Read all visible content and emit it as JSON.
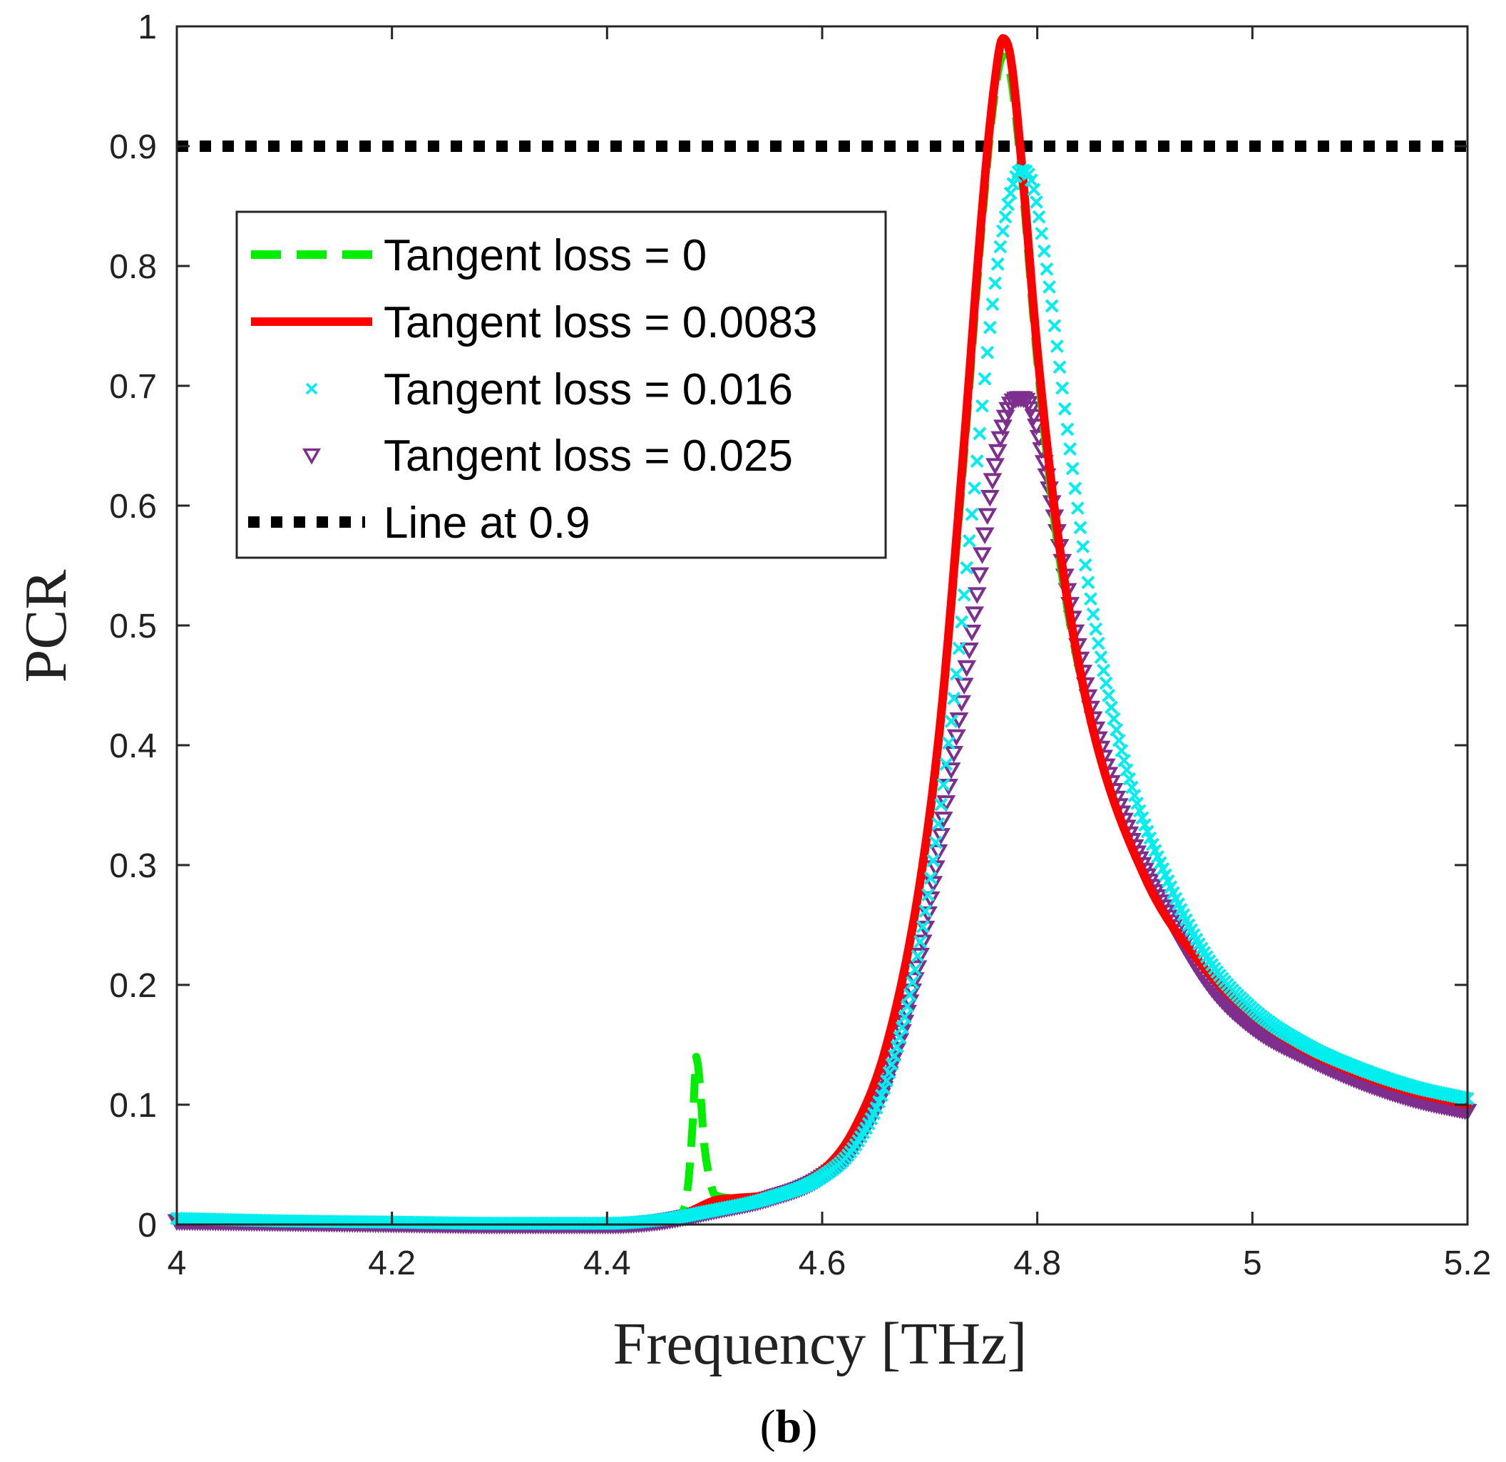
{
  "chart_data": {
    "type": "line",
    "title": "",
    "xlabel": "Frequency [THz]",
    "ylabel": "PCR",
    "panel_label": {
      "open": "(",
      "letter": "b",
      "close": ")"
    },
    "xlim": [
      4,
      5.2
    ],
    "ylim": [
      0,
      1
    ],
    "xticks": [
      4,
      4.2,
      4.4,
      4.6,
      4.8,
      5,
      5.2
    ],
    "xtick_labels": [
      "4",
      "4.2",
      "4.4",
      "4.6",
      "4.8",
      "5",
      "5.2"
    ],
    "yticks": [
      0,
      0.1,
      0.2,
      0.3,
      0.4,
      0.5,
      0.6,
      0.7,
      0.8,
      0.9,
      1
    ],
    "ytick_labels": [
      "0",
      "0.1",
      "0.2",
      "0.3",
      "0.4",
      "0.5",
      "0.6",
      "0.7",
      "0.8",
      "0.9",
      "1"
    ],
    "grid": false,
    "legend_position": "upper-left",
    "series": [
      {
        "name": "Tangent loss = 0",
        "style": "dashed",
        "color": "#00ee00",
        "points": [
          [
            4.0,
            0.005
          ],
          [
            4.1,
            0.003
          ],
          [
            4.2,
            0.002
          ],
          [
            4.3,
            0.001
          ],
          [
            4.4,
            0.001
          ],
          [
            4.45,
            0.003
          ],
          [
            4.47,
            0.01
          ],
          [
            4.475,
            0.03
          ],
          [
            4.48,
            0.09
          ],
          [
            4.483,
            0.14
          ],
          [
            4.486,
            0.12
          ],
          [
            4.49,
            0.07
          ],
          [
            4.495,
            0.04
          ],
          [
            4.5,
            0.025
          ],
          [
            4.52,
            0.022
          ],
          [
            4.55,
            0.025
          ],
          [
            4.6,
            0.045
          ],
          [
            4.63,
            0.08
          ],
          [
            4.66,
            0.15
          ],
          [
            4.69,
            0.28
          ],
          [
            4.71,
            0.42
          ],
          [
            4.73,
            0.62
          ],
          [
            4.75,
            0.85
          ],
          [
            4.76,
            0.94
          ],
          [
            4.768,
            0.975
          ],
          [
            4.775,
            0.96
          ],
          [
            4.785,
            0.88
          ],
          [
            4.8,
            0.72
          ],
          [
            4.82,
            0.56
          ],
          [
            4.85,
            0.42
          ],
          [
            4.9,
            0.29
          ],
          [
            4.95,
            0.22
          ],
          [
            5.0,
            0.175
          ],
          [
            5.05,
            0.145
          ],
          [
            5.1,
            0.125
          ],
          [
            5.15,
            0.11
          ],
          [
            5.2,
            0.1
          ]
        ]
      },
      {
        "name": "Tangent loss = 0.0083",
        "style": "solid",
        "color": "#ff0000",
        "points": [
          [
            4.0,
            0.005
          ],
          [
            4.1,
            0.003
          ],
          [
            4.2,
            0.002
          ],
          [
            4.3,
            0.001
          ],
          [
            4.4,
            0.001
          ],
          [
            4.45,
            0.003
          ],
          [
            4.47,
            0.008
          ],
          [
            4.48,
            0.012
          ],
          [
            4.5,
            0.02
          ],
          [
            4.52,
            0.022
          ],
          [
            4.55,
            0.025
          ],
          [
            4.6,
            0.045
          ],
          [
            4.63,
            0.08
          ],
          [
            4.66,
            0.15
          ],
          [
            4.69,
            0.28
          ],
          [
            4.71,
            0.42
          ],
          [
            4.73,
            0.63
          ],
          [
            4.75,
            0.86
          ],
          [
            4.76,
            0.95
          ],
          [
            4.768,
            0.99
          ],
          [
            4.775,
            0.975
          ],
          [
            4.785,
            0.89
          ],
          [
            4.8,
            0.73
          ],
          [
            4.82,
            0.57
          ],
          [
            4.85,
            0.42
          ],
          [
            4.9,
            0.29
          ],
          [
            4.95,
            0.22
          ],
          [
            5.0,
            0.175
          ],
          [
            5.05,
            0.145
          ],
          [
            5.1,
            0.125
          ],
          [
            5.15,
            0.11
          ],
          [
            5.2,
            0.1
          ]
        ]
      },
      {
        "name": "Tangent loss = 0.016",
        "style": "x-markers",
        "color": "#00eeee",
        "points": [
          [
            4.0,
            0.005
          ],
          [
            4.1,
            0.003
          ],
          [
            4.2,
            0.002
          ],
          [
            4.3,
            0.001
          ],
          [
            4.4,
            0.001
          ],
          [
            4.45,
            0.004
          ],
          [
            4.5,
            0.012
          ],
          [
            4.55,
            0.022
          ],
          [
            4.6,
            0.04
          ],
          [
            4.63,
            0.065
          ],
          [
            4.66,
            0.12
          ],
          [
            4.69,
            0.23
          ],
          [
            4.72,
            0.42
          ],
          [
            4.74,
            0.6
          ],
          [
            4.76,
            0.78
          ],
          [
            4.775,
            0.86
          ],
          [
            4.785,
            0.88
          ],
          [
            4.795,
            0.87
          ],
          [
            4.81,
            0.79
          ],
          [
            4.83,
            0.65
          ],
          [
            4.85,
            0.52
          ],
          [
            4.88,
            0.39
          ],
          [
            4.92,
            0.29
          ],
          [
            4.96,
            0.22
          ],
          [
            5.0,
            0.18
          ],
          [
            5.05,
            0.15
          ],
          [
            5.1,
            0.13
          ],
          [
            5.15,
            0.115
          ],
          [
            5.2,
            0.105
          ]
        ]
      },
      {
        "name": "Tangent loss = 0.025",
        "style": "triangle-markers",
        "color": "#7e2f8e",
        "points": [
          [
            4.0,
            0.003
          ],
          [
            4.1,
            0.002
          ],
          [
            4.2,
            0.001
          ],
          [
            4.3,
            0.0
          ],
          [
            4.4,
            0.0
          ],
          [
            4.45,
            0.003
          ],
          [
            4.5,
            0.012
          ],
          [
            4.55,
            0.022
          ],
          [
            4.6,
            0.04
          ],
          [
            4.63,
            0.065
          ],
          [
            4.66,
            0.12
          ],
          [
            4.69,
            0.22
          ],
          [
            4.72,
            0.38
          ],
          [
            4.74,
            0.5
          ],
          [
            4.76,
            0.63
          ],
          [
            4.775,
            0.685
          ],
          [
            4.785,
            0.69
          ],
          [
            4.795,
            0.68
          ],
          [
            4.81,
            0.62
          ],
          [
            4.83,
            0.52
          ],
          [
            4.85,
            0.43
          ],
          [
            4.88,
            0.34
          ],
          [
            4.92,
            0.26
          ],
          [
            4.96,
            0.2
          ],
          [
            5.0,
            0.165
          ],
          [
            5.05,
            0.14
          ],
          [
            5.1,
            0.12
          ],
          [
            5.15,
            0.105
          ],
          [
            5.2,
            0.095
          ]
        ]
      },
      {
        "name": "Line at 0.9",
        "style": "dotted",
        "color": "#000000",
        "points": [
          [
            4.0,
            0.9
          ],
          [
            5.2,
            0.9
          ]
        ]
      }
    ]
  }
}
